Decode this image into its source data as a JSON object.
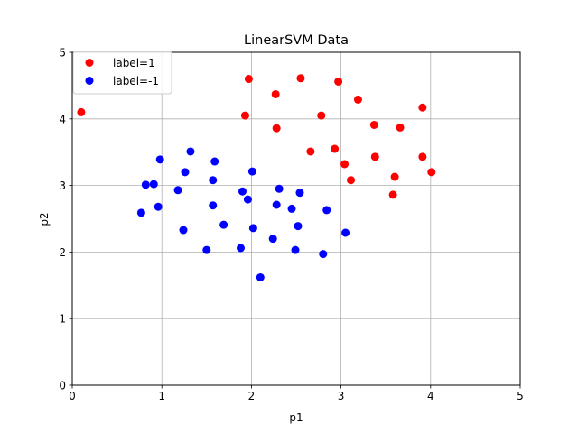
{
  "chart_data": {
    "type": "scatter",
    "title": "LinearSVM Data",
    "xlabel": "p1",
    "ylabel": "p2",
    "xlim": [
      0,
      5
    ],
    "ylim": [
      0,
      5
    ],
    "xticks": [
      "0",
      "1",
      "2",
      "3",
      "4",
      "5"
    ],
    "yticks": [
      "0",
      "1",
      "2",
      "3",
      "4",
      "5"
    ],
    "grid": true,
    "legend_position": "top-left",
    "series": [
      {
        "name": "label=1",
        "color": "#ff0000",
        "points": [
          [
            0.1,
            4.1
          ],
          [
            1.97,
            4.6
          ],
          [
            2.55,
            4.61
          ],
          [
            2.97,
            4.56
          ],
          [
            2.27,
            4.37
          ],
          [
            3.19,
            4.29
          ],
          [
            3.91,
            4.17
          ],
          [
            1.93,
            4.05
          ],
          [
            2.78,
            4.05
          ],
          [
            3.37,
            3.91
          ],
          [
            3.66,
            3.87
          ],
          [
            2.28,
            3.86
          ],
          [
            2.93,
            3.55
          ],
          [
            2.66,
            3.51
          ],
          [
            3.38,
            3.43
          ],
          [
            3.91,
            3.43
          ],
          [
            3.04,
            3.32
          ],
          [
            4.01,
            3.2
          ],
          [
            3.6,
            3.13
          ],
          [
            3.11,
            3.08
          ],
          [
            3.58,
            2.86
          ]
        ]
      },
      {
        "name": "label=-1",
        "color": "#0000ff",
        "points": [
          [
            1.32,
            3.51
          ],
          [
            0.98,
            3.39
          ],
          [
            1.59,
            3.36
          ],
          [
            2.01,
            3.21
          ],
          [
            1.26,
            3.2
          ],
          [
            1.57,
            3.08
          ],
          [
            0.82,
            3.01
          ],
          [
            0.91,
            3.02
          ],
          [
            2.31,
            2.95
          ],
          [
            1.18,
            2.93
          ],
          [
            1.9,
            2.91
          ],
          [
            2.54,
            2.89
          ],
          [
            1.96,
            2.79
          ],
          [
            2.28,
            2.71
          ],
          [
            1.57,
            2.7
          ],
          [
            0.96,
            2.68
          ],
          [
            2.45,
            2.65
          ],
          [
            2.84,
            2.63
          ],
          [
            0.77,
            2.59
          ],
          [
            1.69,
            2.41
          ],
          [
            2.52,
            2.39
          ],
          [
            2.02,
            2.36
          ],
          [
            1.24,
            2.33
          ],
          [
            3.05,
            2.29
          ],
          [
            2.24,
            2.2
          ],
          [
            1.88,
            2.06
          ],
          [
            1.5,
            2.03
          ],
          [
            2.49,
            2.03
          ],
          [
            2.8,
            1.97
          ],
          [
            2.1,
            1.62
          ]
        ]
      }
    ]
  }
}
